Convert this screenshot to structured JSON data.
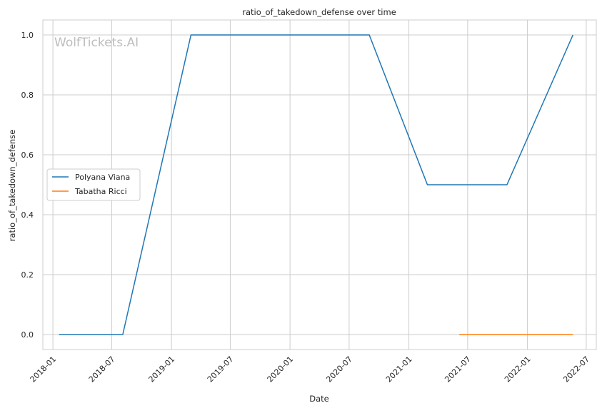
{
  "chart_data": {
    "type": "line",
    "title": "ratio_of_takedown_defense over time",
    "xlabel": "Date",
    "ylabel": "ratio_of_takedown_defense",
    "watermark": "WolfTickets.AI",
    "xlim": [
      "2017-12-01",
      "2022-08-01"
    ],
    "ylim": [
      -0.05,
      1.05
    ],
    "xticks": [
      {
        "date": "2018-01-01",
        "label": "2018-01"
      },
      {
        "date": "2018-07-01",
        "label": "2018-07"
      },
      {
        "date": "2019-01-01",
        "label": "2019-01"
      },
      {
        "date": "2019-07-01",
        "label": "2019-07"
      },
      {
        "date": "2020-01-01",
        "label": "2020-01"
      },
      {
        "date": "2020-07-01",
        "label": "2020-07"
      },
      {
        "date": "2021-01-01",
        "label": "2021-01"
      },
      {
        "date": "2021-07-01",
        "label": "2021-07"
      },
      {
        "date": "2022-01-01",
        "label": "2022-01"
      },
      {
        "date": "2022-07-01",
        "label": "2022-07"
      }
    ],
    "yticks": [
      {
        "value": 0.0,
        "label": "0.0"
      },
      {
        "value": 0.2,
        "label": "0.2"
      },
      {
        "value": 0.4,
        "label": "0.4"
      },
      {
        "value": 0.6,
        "label": "0.6"
      },
      {
        "value": 0.8,
        "label": "0.8"
      },
      {
        "value": 1.0,
        "label": "1.0"
      }
    ],
    "grid": true,
    "legend_position": "center-left",
    "series": [
      {
        "name": "Polyana Viana",
        "color": "#1f77b4",
        "points": [
          {
            "x": "2018-01-20",
            "y": 0.0
          },
          {
            "x": "2018-08-04",
            "y": 0.0
          },
          {
            "x": "2019-03-02",
            "y": 1.0
          },
          {
            "x": "2020-09-01",
            "y": 1.0
          },
          {
            "x": "2021-02-27",
            "y": 0.5
          },
          {
            "x": "2021-10-30",
            "y": 0.5
          },
          {
            "x": "2022-05-21",
            "y": 1.0
          }
        ]
      },
      {
        "name": "Tabatha Ricci",
        "color": "#ff7f0e",
        "points": [
          {
            "x": "2021-06-05",
            "y": 0.0
          },
          {
            "x": "2022-05-21",
            "y": 0.0
          }
        ]
      }
    ]
  }
}
